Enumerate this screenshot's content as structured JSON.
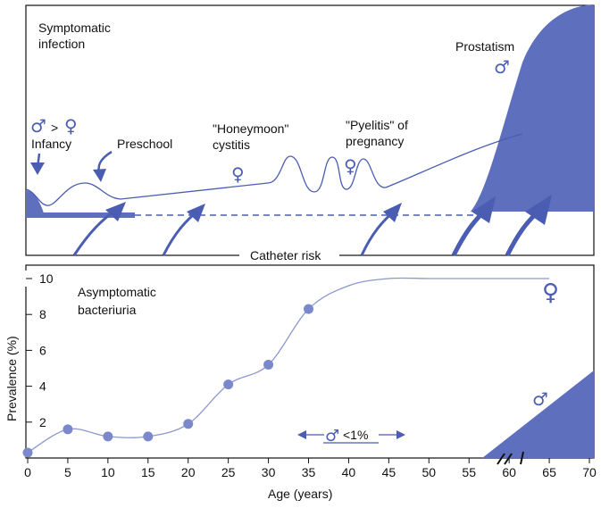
{
  "top_panel": {
    "title_line1": "Symptomatic",
    "title_line2": "infection",
    "infancy_ratio": ">",
    "infancy_label": "Infancy",
    "preschool_label": "Preschool",
    "honeymoon_line1": "\"Honeymoon\"",
    "honeymoon_line2": "cystitis",
    "pyelitis_line1": "\"Pyelitis\" of",
    "pyelitis_line2": "pregnancy",
    "prostatism_label": "Prostatism",
    "catheter_label": "Catheter risk",
    "male_symbol": "♂",
    "female_symbol": "♀"
  },
  "bottom_panel": {
    "title_line1": "Asymptomatic",
    "title_line2": "bacteriuria",
    "male_rate_label": "<1%",
    "male_symbol": "♂",
    "female_symbol": "♀"
  },
  "colors": {
    "accent": "#5d6fbd",
    "curve": "#8b97d0",
    "marker": "#7b89cc"
  },
  "chart_data": {
    "type": "line",
    "xlabel": "Age (years)",
    "ylabel": "Prevalence (%)",
    "xlim": [
      0,
      70
    ],
    "ylim": [
      0,
      10
    ],
    "x_ticks": [
      0,
      5,
      10,
      15,
      20,
      25,
      30,
      35,
      40,
      45,
      50,
      55,
      60,
      65,
      70
    ],
    "x_tick_labels": [
      "0",
      "5",
      "10",
      "15",
      "20",
      "25",
      "30",
      "35",
      "40",
      "45",
      "50",
      "55",
      "60",
      "65",
      "70"
    ],
    "y_ticks": [
      2,
      4,
      6,
      8,
      10
    ],
    "y_tick_labels": [
      "2",
      "4",
      "6",
      "8",
      "10"
    ],
    "axis_break": "x",
    "series": [
      {
        "name": "Female",
        "x": [
          0,
          5,
          10,
          15,
          20,
          25,
          30,
          35,
          40,
          45,
          50,
          55,
          60,
          65
        ],
        "y": [
          0.3,
          1.6,
          1.2,
          1.2,
          1.9,
          4.1,
          5.2,
          8.3,
          9.6,
          10.0,
          10.0,
          10.0,
          10.0,
          10.0
        ]
      }
    ]
  }
}
